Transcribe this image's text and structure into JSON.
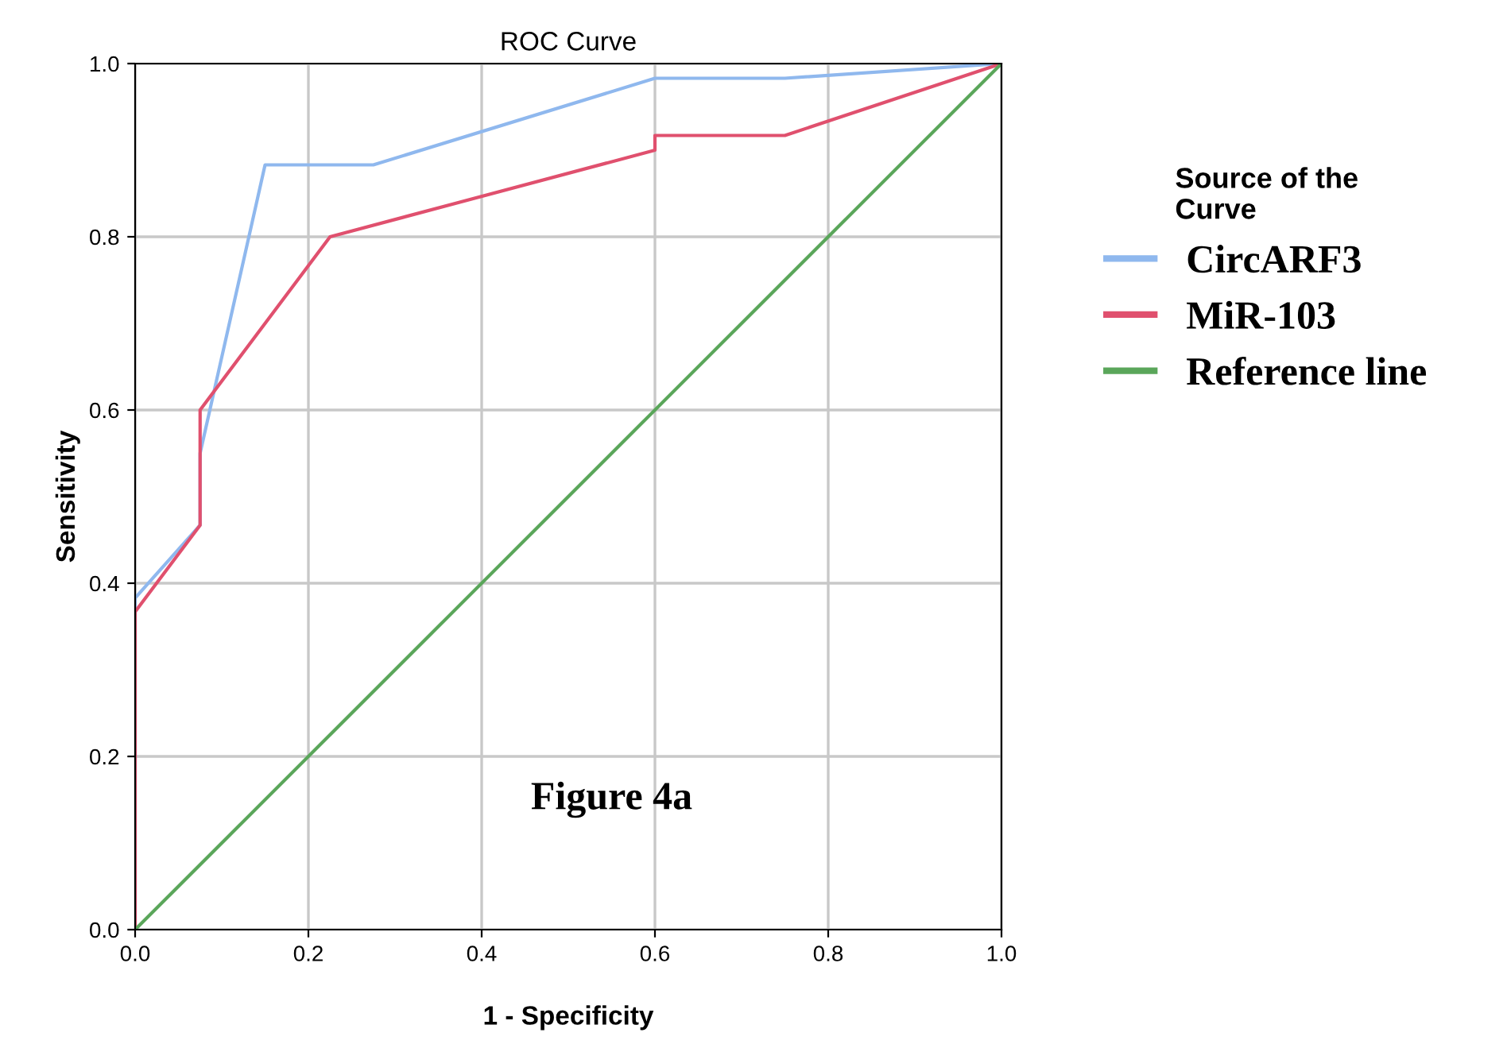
{
  "chart_data": {
    "type": "line",
    "title": "ROC Curve",
    "xlabel": "1 - Specificity",
    "ylabel": "Sensitivity",
    "legend_title": "Source of the\nCurve",
    "legend": "right",
    "grid": true,
    "xlim": [
      0,
      1
    ],
    "ylim": [
      0,
      1
    ],
    "xticks": [
      {
        "value": 0,
        "label": "0.0"
      },
      0.2,
      0.4,
      0.6,
      0.8,
      {
        "value": 1,
        "label": "1.0"
      }
    ],
    "yticks": [
      {
        "value": 0,
        "label": "0.0"
      },
      0.2,
      0.4,
      0.6,
      0.8,
      {
        "value": 1,
        "label": "1.0"
      }
    ],
    "annotations": [
      "Figure 4a"
    ],
    "series": [
      {
        "name": "CircARF3",
        "color": "#8fb8ee",
        "x": [
          0,
          0,
          0.075,
          0.075,
          0.15,
          0.275,
          0.6,
          0.75,
          1
        ],
        "values": [
          0,
          0.383,
          0.467,
          0.55,
          0.883,
          0.883,
          0.983,
          0.983,
          1
        ]
      },
      {
        "name": "MiR-103",
        "color": "#e0506e",
        "x": [
          0,
          0,
          0.075,
          0.075,
          0.225,
          0.6,
          0.6,
          0.75,
          1
        ],
        "values": [
          0,
          0.367,
          0.467,
          0.6,
          0.8,
          0.9,
          0.917,
          0.917,
          1
        ]
      },
      {
        "name": "Reference line",
        "color": "#5aa65a",
        "x": [
          0,
          1
        ],
        "values": [
          0,
          1
        ]
      }
    ]
  }
}
